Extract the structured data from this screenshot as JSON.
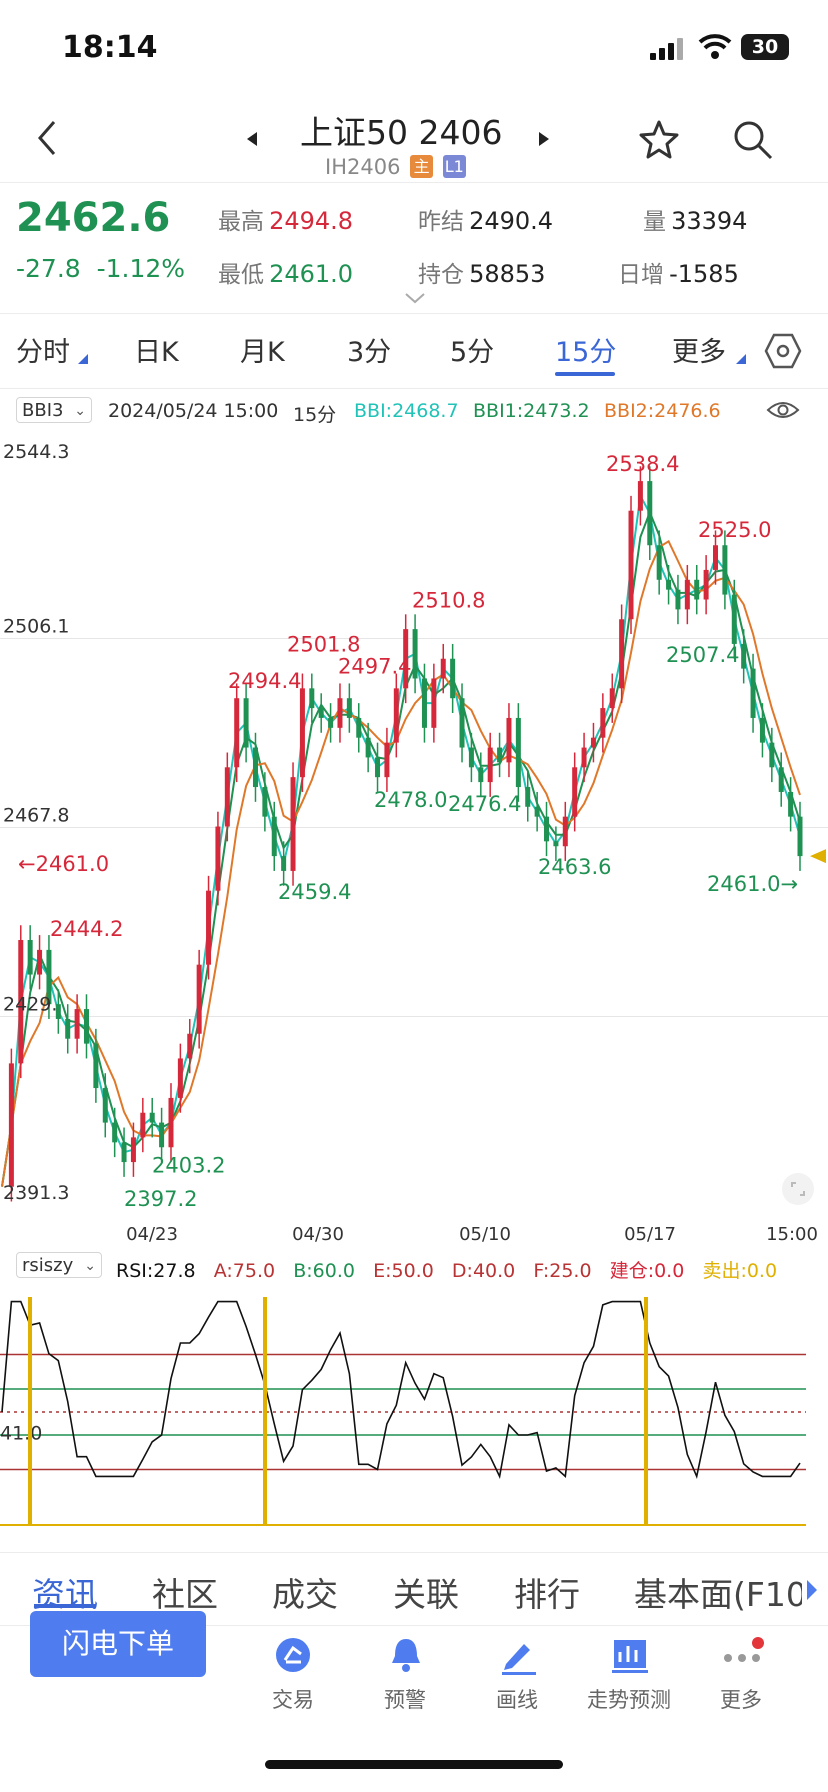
{
  "status_bar": {
    "time": "18:14",
    "battery": "30"
  },
  "header": {
    "title": "上证50 2406",
    "code": "IH2406",
    "badge_main": "主",
    "badge_level": "L1"
  },
  "quote": {
    "price": "2462.6",
    "change": "-27.8",
    "change_pct": "-1.12%",
    "high_label": "最高",
    "high": "2494.8",
    "low_label": "最低",
    "low": "2461.0",
    "prev_settle_label": "昨结",
    "prev_settle": "2490.4",
    "open_interest_label": "持仓",
    "open_interest": "58853",
    "volume_label": "量",
    "volume": "33394",
    "daily_change_label": "日增",
    "daily_change": "-1585"
  },
  "period_tabs": [
    "分时",
    "日K",
    "月K",
    "3分",
    "5分",
    "15分",
    "更多"
  ],
  "active_period": "15分",
  "indicator_bar": {
    "selector": "BBI3",
    "datetime": "2024/05/24 15:00",
    "period": "15分",
    "bbi": "BBI:2468.7",
    "bbi1": "BBI1:2473.2",
    "bbi2": "BBI2:2476.6"
  },
  "chart_data": {
    "type": "line",
    "title": "",
    "price_axis": [
      "2544.3",
      "2506.1",
      "2467.8",
      "2429.",
      "2391.3"
    ],
    "ylim": [
      2391.3,
      2544.3
    ],
    "x_ticks": [
      "04/23",
      "04/30",
      "05/10",
      "05/17",
      "15:00"
    ],
    "annotations": [
      {
        "text": "←2461.0",
        "value": 2461.0,
        "color": "#d5283a"
      },
      {
        "text": "2444.2",
        "value": 2444.2,
        "color": "#d5283a"
      },
      {
        "text": "2494.4",
        "value": 2494.4,
        "color": "#d5283a"
      },
      {
        "text": "2501.8",
        "value": 2501.8,
        "color": "#d5283a"
      },
      {
        "text": "2497.4",
        "value": 2497.4,
        "color": "#d5283a"
      },
      {
        "text": "2510.8",
        "value": 2510.8,
        "color": "#d5283a"
      },
      {
        "text": "2538.4",
        "value": 2538.4,
        "color": "#d5283a"
      },
      {
        "text": "2525.0",
        "value": 2525.0,
        "color": "#d5283a"
      },
      {
        "text": "2403.2",
        "value": 2403.2,
        "color": "#1f9152"
      },
      {
        "text": "2397.2",
        "value": 2397.2,
        "color": "#1f9152"
      },
      {
        "text": "2459.4",
        "value": 2459.4,
        "color": "#1f9152"
      },
      {
        "text": "2478.0",
        "value": 2478.0,
        "color": "#1f9152"
      },
      {
        "text": "2476.4",
        "value": 2476.4,
        "color": "#1f9152"
      },
      {
        "text": "2463.6",
        "value": 2463.6,
        "color": "#1f9152"
      },
      {
        "text": "2507.4",
        "value": 2507.4,
        "color": "#1f9152"
      },
      {
        "text": "2461.0→",
        "value": 2461.0,
        "color": "#1f9152"
      }
    ],
    "series": [
      {
        "name": "BBI",
        "color": "#20c3b8"
      },
      {
        "name": "BBI1",
        "color": "#1f9152"
      },
      {
        "name": "BBI2",
        "color": "#e0782a"
      }
    ],
    "price": [
      2395,
      2420,
      2445,
      2438,
      2443,
      2432,
      2429,
      2425,
      2431,
      2424,
      2415,
      2408,
      2404,
      2400,
      2405,
      2410,
      2408,
      2403,
      2413,
      2421,
      2426,
      2440,
      2455,
      2468,
      2480,
      2494,
      2484,
      2476,
      2470,
      2462,
      2459,
      2478,
      2496,
      2492,
      2490,
      2488,
      2494,
      2490,
      2486,
      2482,
      2478,
      2485,
      2496,
      2508,
      2498,
      2488,
      2498,
      2502,
      2494,
      2484,
      2480,
      2477,
      2484,
      2481,
      2490,
      2476,
      2472,
      2470,
      2465,
      2464,
      2470,
      2480,
      2484,
      2486,
      2492,
      2496,
      2510,
      2532,
      2538,
      2525,
      2518,
      2516,
      2512,
      2518,
      2514,
      2520,
      2525,
      2515,
      2505,
      2500,
      2490,
      2485,
      2480,
      2475,
      2470,
      2462
    ],
    "rsi_series": {
      "name": "RSI",
      "current": 27.8,
      "levels": {
        "A": 75.0,
        "B": 60.0,
        "E": 50.0,
        "D": 40.0,
        "F": 25.0
      },
      "axis_label": "41.0"
    }
  },
  "rsi_bar": {
    "selector": "rsiszy",
    "rsi": "RSI:27.8",
    "a": "A:75.0",
    "b": "B:60.0",
    "e": "E:50.0",
    "d": "D:40.0",
    "f": "F:25.0",
    "build": "建仓:0.0",
    "sell": "卖出:0.0"
  },
  "bottom_tabs": [
    "资讯",
    "社区",
    "成交",
    "关联",
    "排行",
    "基本面(F10"
  ],
  "nav": {
    "flash_order": "闪电下单",
    "items": [
      "交易",
      "预警",
      "画线",
      "走势预测",
      "更多"
    ]
  }
}
